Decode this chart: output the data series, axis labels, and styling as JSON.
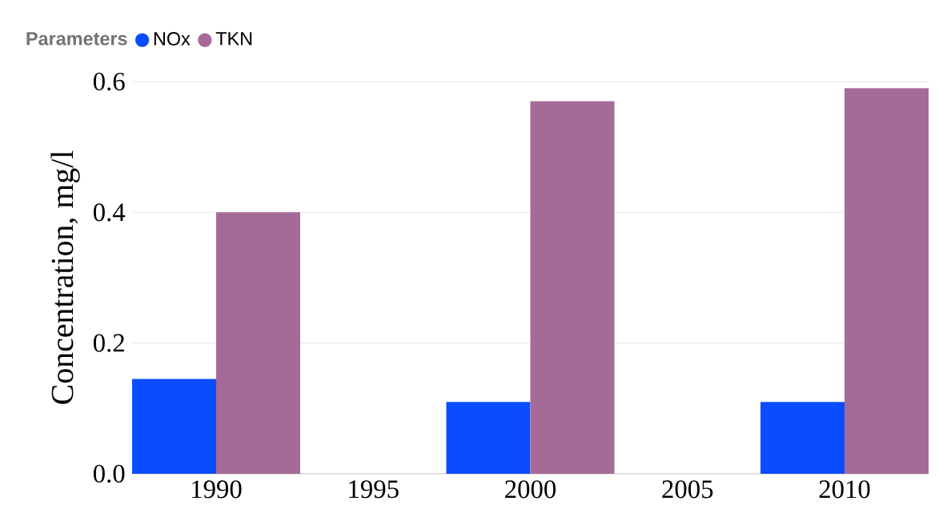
{
  "chart_data": {
    "type": "bar",
    "ylabel": "Concentration, mg/l",
    "legend_title": "Parameters",
    "categories": [
      "1990",
      "1995",
      "2000",
      "2005",
      "2010"
    ],
    "series": [
      {
        "name": "NOx",
        "color": "#0a4cff",
        "values": [
          0.145,
          null,
          0.11,
          null,
          0.11
        ]
      },
      {
        "name": "TKN",
        "color": "#a66a98",
        "values": [
          0.4,
          null,
          0.57,
          null,
          0.59
        ]
      }
    ],
    "ylim": [
      0,
      0.6
    ],
    "yticks": [
      {
        "value": 0,
        "label": "0.0"
      },
      {
        "value": 0.2,
        "label": "0.2"
      },
      {
        "value": 0.4,
        "label": "0.4"
      },
      {
        "value": 0.6,
        "label": "0.6"
      }
    ],
    "grid": "y",
    "legend": "top left"
  }
}
